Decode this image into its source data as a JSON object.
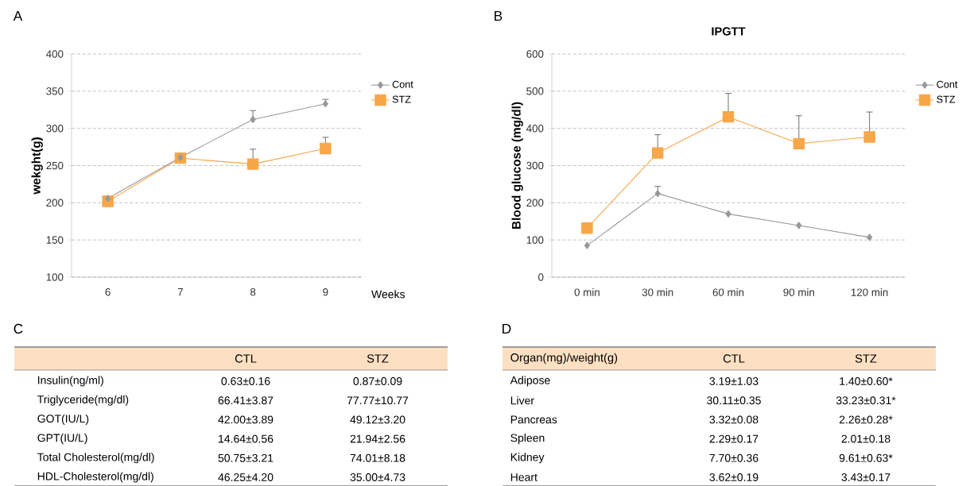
{
  "chart_data": [
    {
      "type": "line",
      "annotations": [
        "A"
      ],
      "xlabel": "Weeks",
      "ylabel": "wekght(g)",
      "categories": [
        "6",
        "7",
        "8",
        "9"
      ],
      "series": [
        {
          "name": "Cont",
          "color": "#999999",
          "marker": "diamond",
          "values": [
            206,
            261,
            312,
            333
          ],
          "errors": [
            null,
            null,
            [
              312,
              324
            ],
            [
              333,
              339
            ]
          ]
        },
        {
          "name": "STZ",
          "color": "#f7a648",
          "marker": "square",
          "values": [
            202,
            260,
            252,
            273
          ],
          "errors": [
            null,
            null,
            [
              252,
              272
            ],
            [
              273,
              288
            ]
          ]
        }
      ],
      "ylim": [
        100,
        400
      ],
      "yticks": [
        100,
        150,
        200,
        250,
        300,
        350,
        400
      ],
      "grid": "y",
      "legend": "right"
    },
    {
      "type": "line",
      "annotations": [
        "B"
      ],
      "title": "IPGTT",
      "ylabel": "Blood glucose (mg/dl)",
      "categories": [
        "0 min",
        "30 min",
        "60 min",
        "90 min",
        "120 min"
      ],
      "series": [
        {
          "name": "Cont",
          "color": "#999999",
          "marker": "diamond",
          "values": [
            85,
            225,
            170,
            139,
            107
          ],
          "errors": [
            null,
            [
              225,
              244
            ],
            null,
            null,
            null
          ]
        },
        {
          "name": "STZ",
          "color": "#f7a648",
          "marker": "square",
          "values": [
            132,
            334,
            431,
            359,
            377
          ],
          "errors": [
            null,
            [
              334,
              383
            ],
            [
              431,
              494
            ],
            [
              359,
              434
            ],
            [
              377,
              444
            ]
          ]
        }
      ],
      "ylim": [
        0,
        600
      ],
      "yticks": [
        0,
        100,
        200,
        300,
        400,
        500,
        600
      ],
      "grid": "y",
      "legend": "right"
    },
    {
      "type": "other",
      "annotations": [
        "C"
      ],
      "color": "#fde0c2",
      "categories": [
        null,
        "CTL",
        "STZ"
      ],
      "y_categories": [
        "Insulin(ng/ml)",
        "Triglyceride(mg/dl)",
        "GOT(IU/L)",
        "GPT(IU/L)",
        "Total Cholesterol(mg/dl)",
        "HDL-Cholesterol(mg/dl)"
      ],
      "cell_labels": [
        [
          "0.63±0.16",
          "0.87±0.09"
        ],
        [
          "66.41±3.87",
          "77.77±10.77"
        ],
        [
          "42.00±3.89",
          "49.12±3.20"
        ],
        [
          "14.64±0.56",
          "21.94±2.56"
        ],
        [
          "50.75±3.21",
          "74.01±8.18"
        ],
        [
          "46.25±4.20",
          "35.00±4.73"
        ]
      ]
    },
    {
      "type": "other",
      "annotations": [
        "D"
      ],
      "color": "#fde0c2",
      "categories": [
        "Organ(mg)/weight(g)",
        "CTL",
        "STZ"
      ],
      "y_categories": [
        "Adipose",
        "Liver",
        "Pancreas",
        "Spleen",
        "Kidney",
        "Heart"
      ],
      "cell_labels": [
        [
          "3.19±1.03",
          "1.40±0.60*"
        ],
        [
          "30.11±0.35",
          "33.23±0.31*"
        ],
        [
          "3.32±0.08",
          "2.26±0.28*"
        ],
        [
          "2.29±0.17",
          "2.01±0.18"
        ],
        [
          "7.70±0.36",
          "9.61±0.63*"
        ],
        [
          "3.62±0.19",
          "3.43±0.17"
        ]
      ]
    }
  ]
}
